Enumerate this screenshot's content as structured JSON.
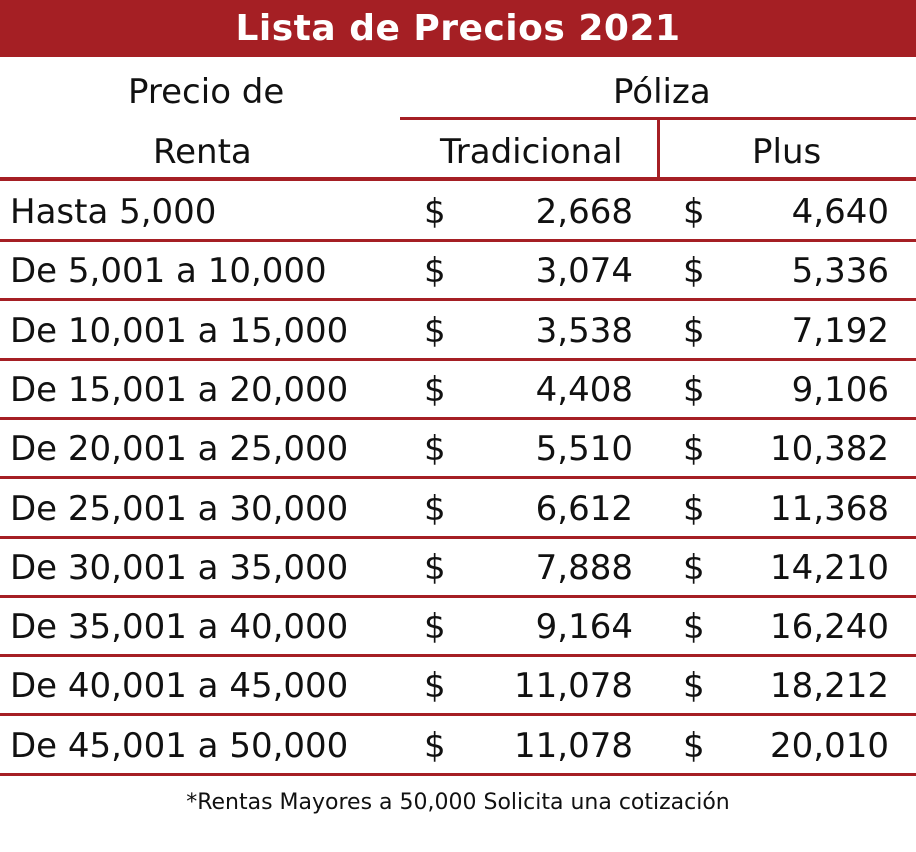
{
  "title": "Lista de Precios 2021",
  "header": {
    "precio_line1": "Precio de",
    "precio_line2": "Renta",
    "poliza": "Póliza",
    "tradicional": "Tradicional",
    "plus": "Plus"
  },
  "currency_symbol": "$",
  "rows": [
    {
      "range": "Hasta 5,000",
      "tradicional": "2,668",
      "plus": "4,640"
    },
    {
      "range": "De 5,001 a 10,000",
      "tradicional": "3,074",
      "plus": "5,336"
    },
    {
      "range": "De 10,001 a 15,000",
      "tradicional": "3,538",
      "plus": "7,192"
    },
    {
      "range": "De 15,001 a 20,000",
      "tradicional": "4,408",
      "plus": "9,106"
    },
    {
      "range": "De 20,001 a 25,000",
      "tradicional": "5,510",
      "plus": "10,382"
    },
    {
      "range": "De 25,001 a 30,000",
      "tradicional": "6,612",
      "plus": "11,368"
    },
    {
      "range": "De 30,001 a 35,000",
      "tradicional": "7,888",
      "plus": "14,210"
    },
    {
      "range": "De 35,001 a 40,000",
      "tradicional": "9,164",
      "plus": "16,240"
    },
    {
      "range": "De 40,001 a 45,000",
      "tradicional": "11,078",
      "plus": "18,212"
    },
    {
      "range": "De 45,001 a 50,000",
      "tradicional": "11,078",
      "plus": "20,010"
    }
  ],
  "footnote": "*Rentas Mayores a 50,000 Solicita una cotización",
  "colors": {
    "accent": "#a51f24",
    "text": "#111111",
    "background": "#ffffff"
  }
}
